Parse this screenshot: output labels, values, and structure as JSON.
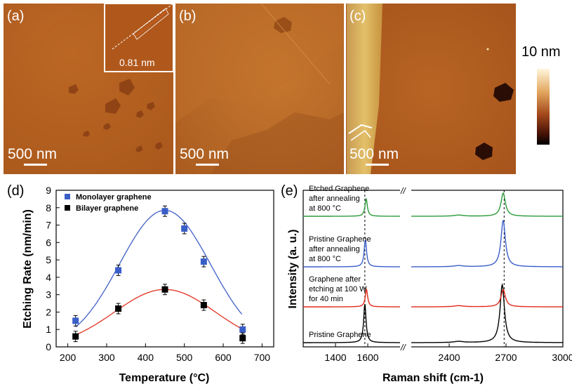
{
  "panels": {
    "a": {
      "label": "(a)",
      "scale_bar": "500 nm",
      "inset_text": "0.81 nm"
    },
    "b": {
      "label": "(b)",
      "scale_bar": "500 nm"
    },
    "c": {
      "label": "(c)",
      "scale_bar": "500 nm"
    },
    "colorbar": {
      "max_label": "10 nm"
    },
    "d": {
      "label": "(d)"
    },
    "e": {
      "label": "(e)"
    }
  },
  "colors": {
    "monolayer": "#2b56c4",
    "bilayer": "#000000",
    "mono_fit": "#4060c8",
    "bi_fit": "#e03020",
    "green": "#2a9a3a",
    "blue": "#3a5ec8",
    "red": "#e02a1a",
    "black": "#000000"
  },
  "chart_data": [
    {
      "type": "scatter",
      "title": "",
      "xlabel": "Temperature (°C)",
      "ylabel": "Etching Rate (nm/min)",
      "xlim": [
        170,
        730
      ],
      "ylim": [
        0,
        9
      ],
      "xticks": [
        200,
        300,
        400,
        500,
        600,
        700
      ],
      "yticks": [
        0,
        1,
        2,
        3,
        4,
        5,
        6,
        7,
        8,
        9
      ],
      "legend_position": "top-left",
      "series": [
        {
          "name": "Monolayer graphene",
          "x": [
            220,
            330,
            450,
            500,
            550,
            650
          ],
          "y": [
            1.5,
            4.4,
            7.8,
            6.8,
            4.9,
            1.0
          ],
          "err": [
            0.3,
            0.3,
            0.3,
            0.3,
            0.3,
            0.3
          ]
        },
        {
          "name": "Bilayer graphene",
          "x": [
            220,
            330,
            450,
            550,
            650
          ],
          "y": [
            0.6,
            2.2,
            3.3,
            2.4,
            0.5
          ],
          "err": [
            0.3,
            0.3,
            0.3,
            0.3,
            0.3
          ]
        }
      ],
      "fits": [
        {
          "name": "Monolayer fit",
          "x0": 450,
          "a": 7.85,
          "sigma": 117
        },
        {
          "name": "Bilayer fit",
          "x0": 450,
          "a": 3.3,
          "sigma": 130
        }
      ]
    },
    {
      "type": "line",
      "title": "",
      "xlabel": "Raman shift (cm-1)",
      "ylabel": "Intensity (a. u.)",
      "xticks": [
        "1400",
        "1600",
        "2400",
        "2700",
        "3000"
      ],
      "series": [
        {
          "name": "Pristine Graphene",
          "label_lines": [
            "Pristine Graphene"
          ],
          "color_key": "black",
          "G_peak": 1582,
          "D2_peak": 2680,
          "G_height": 1.0,
          "D2_height": 1.5
        },
        {
          "name": "Graphene after etching at 100 W for 40 min",
          "label_lines": [
            "Graphene after",
            "etching at 100 W",
            "for 40 min"
          ],
          "color_key": "red",
          "G_peak": 1592,
          "D2_peak": 2685,
          "G_height": 0.45,
          "D2_height": 0.45
        },
        {
          "name": "Pristine Graphene after annealing at 800 °C",
          "label_lines": [
            "Pristine Graphene",
            "after annealing",
            "at 800 °C"
          ],
          "color_key": "blue",
          "G_peak": 1585,
          "D2_peak": 2685,
          "G_height": 0.7,
          "D2_height": 1.2
        },
        {
          "name": "Etched Graphene after annealing at 800 °C",
          "label_lines": [
            "Etched Graphene",
            "after annealing",
            "at 800 °C"
          ],
          "color_key": "green",
          "G_peak": 1590,
          "D2_peak": 2685,
          "G_height": 0.45,
          "D2_height": 0.6
        }
      ],
      "dashed_markers": [
        1582,
        2690
      ]
    }
  ]
}
